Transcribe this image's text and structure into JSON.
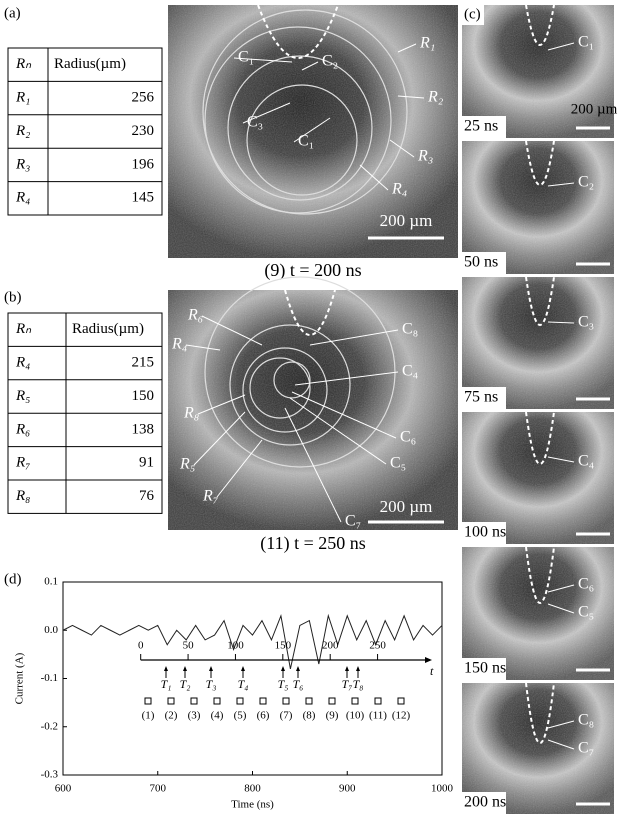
{
  "panel_a": {
    "label": "(a)",
    "table": {
      "header": [
        "Rₙ",
        "Radius(µm)"
      ],
      "rows": [
        [
          "R₁",
          256
        ],
        [
          "R₂",
          230
        ],
        [
          "R₃",
          196
        ],
        [
          "R₄",
          145
        ]
      ]
    },
    "image": {
      "labels": [
        "R₁",
        "R₂",
        "R₃",
        "R₄",
        "C₁",
        "C₂",
        "C₃",
        "C₁"
      ],
      "scale_bar": "200 µm"
    },
    "caption": "(9) t = 200 ns"
  },
  "panel_b": {
    "label": "(b)",
    "table": {
      "header": [
        "Rₙ",
        "Radius(µm)"
      ],
      "rows": [
        [
          "R₄",
          215
        ],
        [
          "R₅",
          150
        ],
        [
          "R₆",
          138
        ],
        [
          "R₇",
          91
        ],
        [
          "R₈",
          76
        ]
      ]
    },
    "image": {
      "labels": [
        "R₆",
        "R₄",
        "R₈",
        "R₅",
        "R₇",
        "C₈",
        "C₄",
        "C₆",
        "C₅",
        "C₇"
      ],
      "scale_bar": "200 µm"
    },
    "caption": "(11) t = 250 ns"
  },
  "panel_c": {
    "label": "(c)",
    "scale_bar": "200 µm",
    "frames": [
      {
        "time": "25 ns",
        "labels": [
          "C₁"
        ]
      },
      {
        "time": "50 ns",
        "labels": [
          "C₂"
        ]
      },
      {
        "time": "75 ns",
        "labels": [
          "C₃"
        ]
      },
      {
        "time": "100 ns",
        "labels": [
          "C₄"
        ]
      },
      {
        "time": "150 ns",
        "labels": [
          "C₆",
          "C₅"
        ]
      },
      {
        "time": "200 ns",
        "labels": [
          "C₈",
          "C₇"
        ]
      }
    ]
  },
  "chart_data": {
    "type": "line",
    "label": "(d)",
    "x_label": "Time (ns)",
    "y_label": "Current (A)",
    "color": "#222",
    "x": [
      600,
      610,
      620,
      630,
      640,
      650,
      660,
      670,
      680,
      690,
      700,
      710,
      720,
      730,
      740,
      750,
      760,
      770,
      780,
      790,
      800,
      810,
      820,
      830,
      840,
      850,
      860,
      870,
      880,
      890,
      900,
      910,
      920,
      930,
      940,
      950,
      960,
      970,
      980,
      990,
      1000
    ],
    "values": [
      0.0,
      0.01,
      0.0,
      -0.01,
      0.01,
      0.0,
      -0.01,
      0.0,
      0.01,
      0.0,
      0.01,
      -0.03,
      0.0,
      -0.02,
      0.01,
      -0.02,
      -0.01,
      0.02,
      -0.04,
      0.01,
      -0.01,
      0.02,
      -0.02,
      0.03,
      -0.08,
      0.01,
      0.02,
      -0.07,
      0.03,
      -0.03,
      0.03,
      -0.02,
      0.02,
      -0.03,
      0.02,
      -0.02,
      0.03,
      -0.02,
      0.01,
      -0.01,
      0.01
    ],
    "xlim": [
      600,
      1000
    ],
    "xticks": [
      600,
      700,
      800,
      900,
      1000
    ],
    "ylim": [
      -0.3,
      0.1
    ],
    "yticks": [
      0.1,
      {
        "value": 0,
        "label": "0.0"
      },
      -0.1,
      -0.2,
      -0.3
    ],
    "timeline": {
      "ticks": [
        0,
        50,
        100,
        150,
        200,
        250
      ],
      "axis_label": "t",
      "events": [
        "T₁",
        "T₂",
        "T₃",
        "T₄",
        "T₅",
        "T₆",
        "T₇",
        "T₈"
      ],
      "frames": [
        "(1)",
        "(2)",
        "(3)",
        "(4)",
        "(5)",
        "(6)",
        "(7)",
        "(8)",
        "(9)",
        "(10)",
        "(11)",
        "(12)"
      ]
    }
  }
}
